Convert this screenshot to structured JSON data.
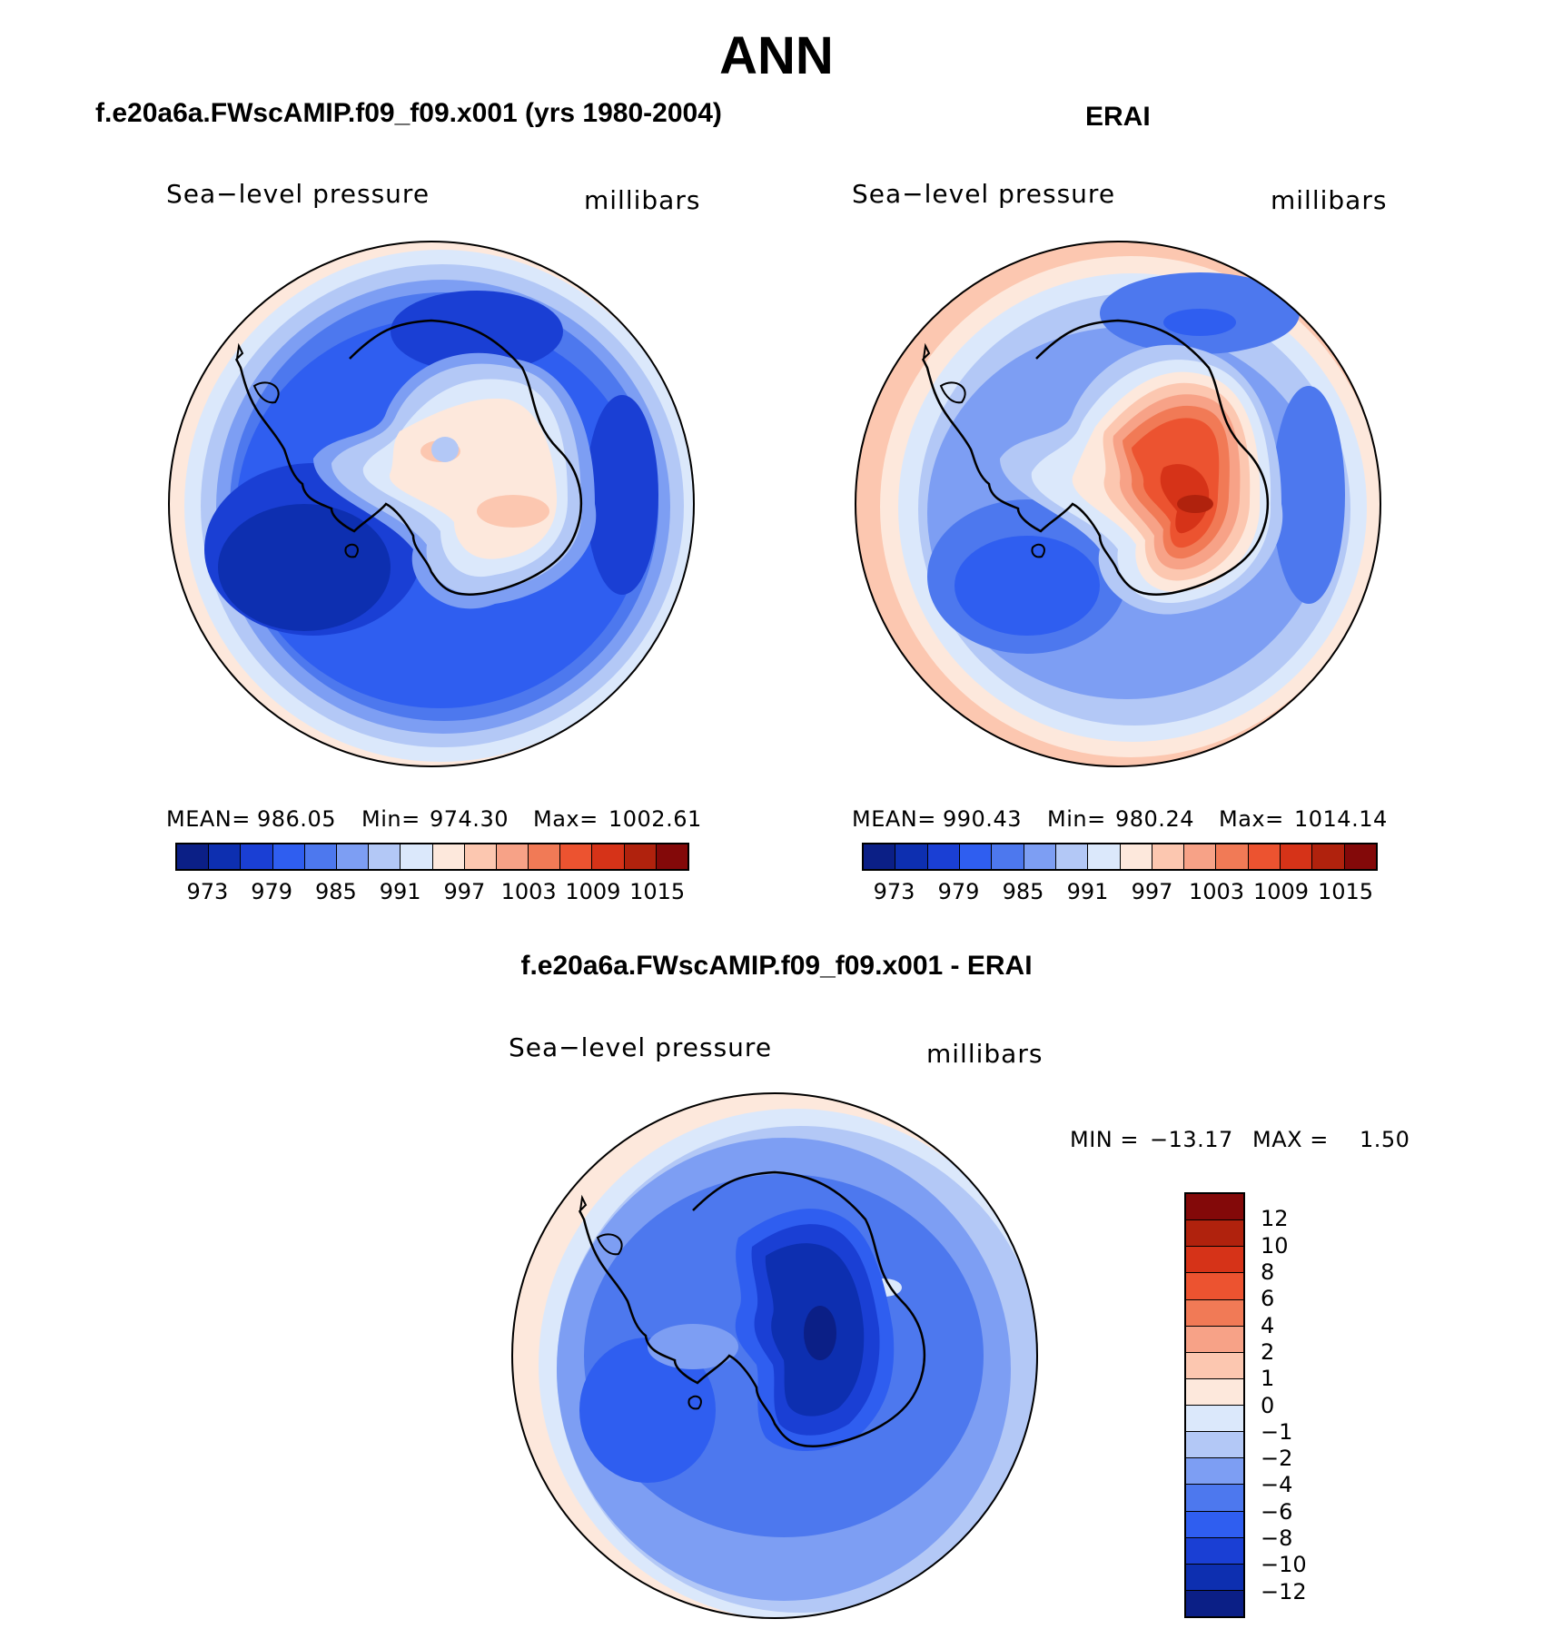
{
  "page_title": "ANN",
  "panels": {
    "model": {
      "title": "f.e20a6a.FWscAMIP.f09_f09.x001 (yrs 1980-2004)",
      "variable": "Sea−level pressure",
      "units": "millibars",
      "mean_label": "MEAN=",
      "mean": "986.05",
      "min_label": "Min=",
      "min": "974.30",
      "max_label": "Max=",
      "max": "1002.61"
    },
    "obs": {
      "title": "ERAI",
      "variable": "Sea−level pressure",
      "units": "millibars",
      "mean_label": "MEAN=",
      "mean": "990.43",
      "min_label": "Min=",
      "min": "980.24",
      "max_label": "Max=",
      "max": "1014.14"
    },
    "diff": {
      "title": "f.e20a6a.FWscAMIP.f09_f09.x001 - ERAI",
      "variable": "Sea−level pressure",
      "units": "millibars",
      "min_label": "MIN =",
      "min": "−13.17",
      "max_label": "MAX =",
      "max": "1.50"
    }
  },
  "chart_data": [
    {
      "type": "heatmap",
      "title": "f.e20a6a.FWscAMIP.f09_f09.x001 (yrs 1980-2004)",
      "variable": "Sea-level pressure",
      "units": "millibars",
      "projection": "south polar stereographic",
      "mean": 986.05,
      "min": 974.3,
      "max": 1002.61,
      "colorbar_ticks": [
        "973",
        "979",
        "985",
        "991",
        "997",
        "1003",
        "1009",
        "1015"
      ]
    },
    {
      "type": "heatmap",
      "title": "ERAI",
      "variable": "Sea-level pressure",
      "units": "millibars",
      "projection": "south polar stereographic",
      "mean": 990.43,
      "min": 980.24,
      "max": 1014.14,
      "colorbar_ticks": [
        "973",
        "979",
        "985",
        "991",
        "997",
        "1003",
        "1009",
        "1015"
      ]
    },
    {
      "type": "heatmap",
      "title": "f.e20a6a.FWscAMIP.f09_f09.x001 - ERAI",
      "variable": "Sea-level pressure",
      "units": "millibars",
      "projection": "south polar stereographic",
      "min": -13.17,
      "max": 1.5,
      "colorbar_ticks": [
        "12",
        "10",
        "8",
        "6",
        "4",
        "2",
        "1",
        "0",
        "−1",
        "−2",
        "−4",
        "−6",
        "−8",
        "−10",
        "−12"
      ]
    }
  ],
  "colors": {
    "abs_scale": [
      "#0b1f86",
      "#0d2fb0",
      "#1a3fd4",
      "#2f5ef0",
      "#4d78ee",
      "#7d9ef3",
      "#b3c8f6",
      "#dbe8fb",
      "#fde8dc",
      "#fcc7b0",
      "#f7a287",
      "#f17a56",
      "#ec5330",
      "#d63318",
      "#b0220d",
      "#830909"
    ],
    "diff_scale": [
      "#830909",
      "#b0220d",
      "#d63318",
      "#ec5330",
      "#f17a56",
      "#f7a287",
      "#fcc7b0",
      "#fde8dc",
      "#dbe8fb",
      "#b3c8f6",
      "#7d9ef3",
      "#4d78ee",
      "#2f5ef0",
      "#1a3fd4",
      "#0d2fb0",
      "#0b1f86"
    ]
  }
}
